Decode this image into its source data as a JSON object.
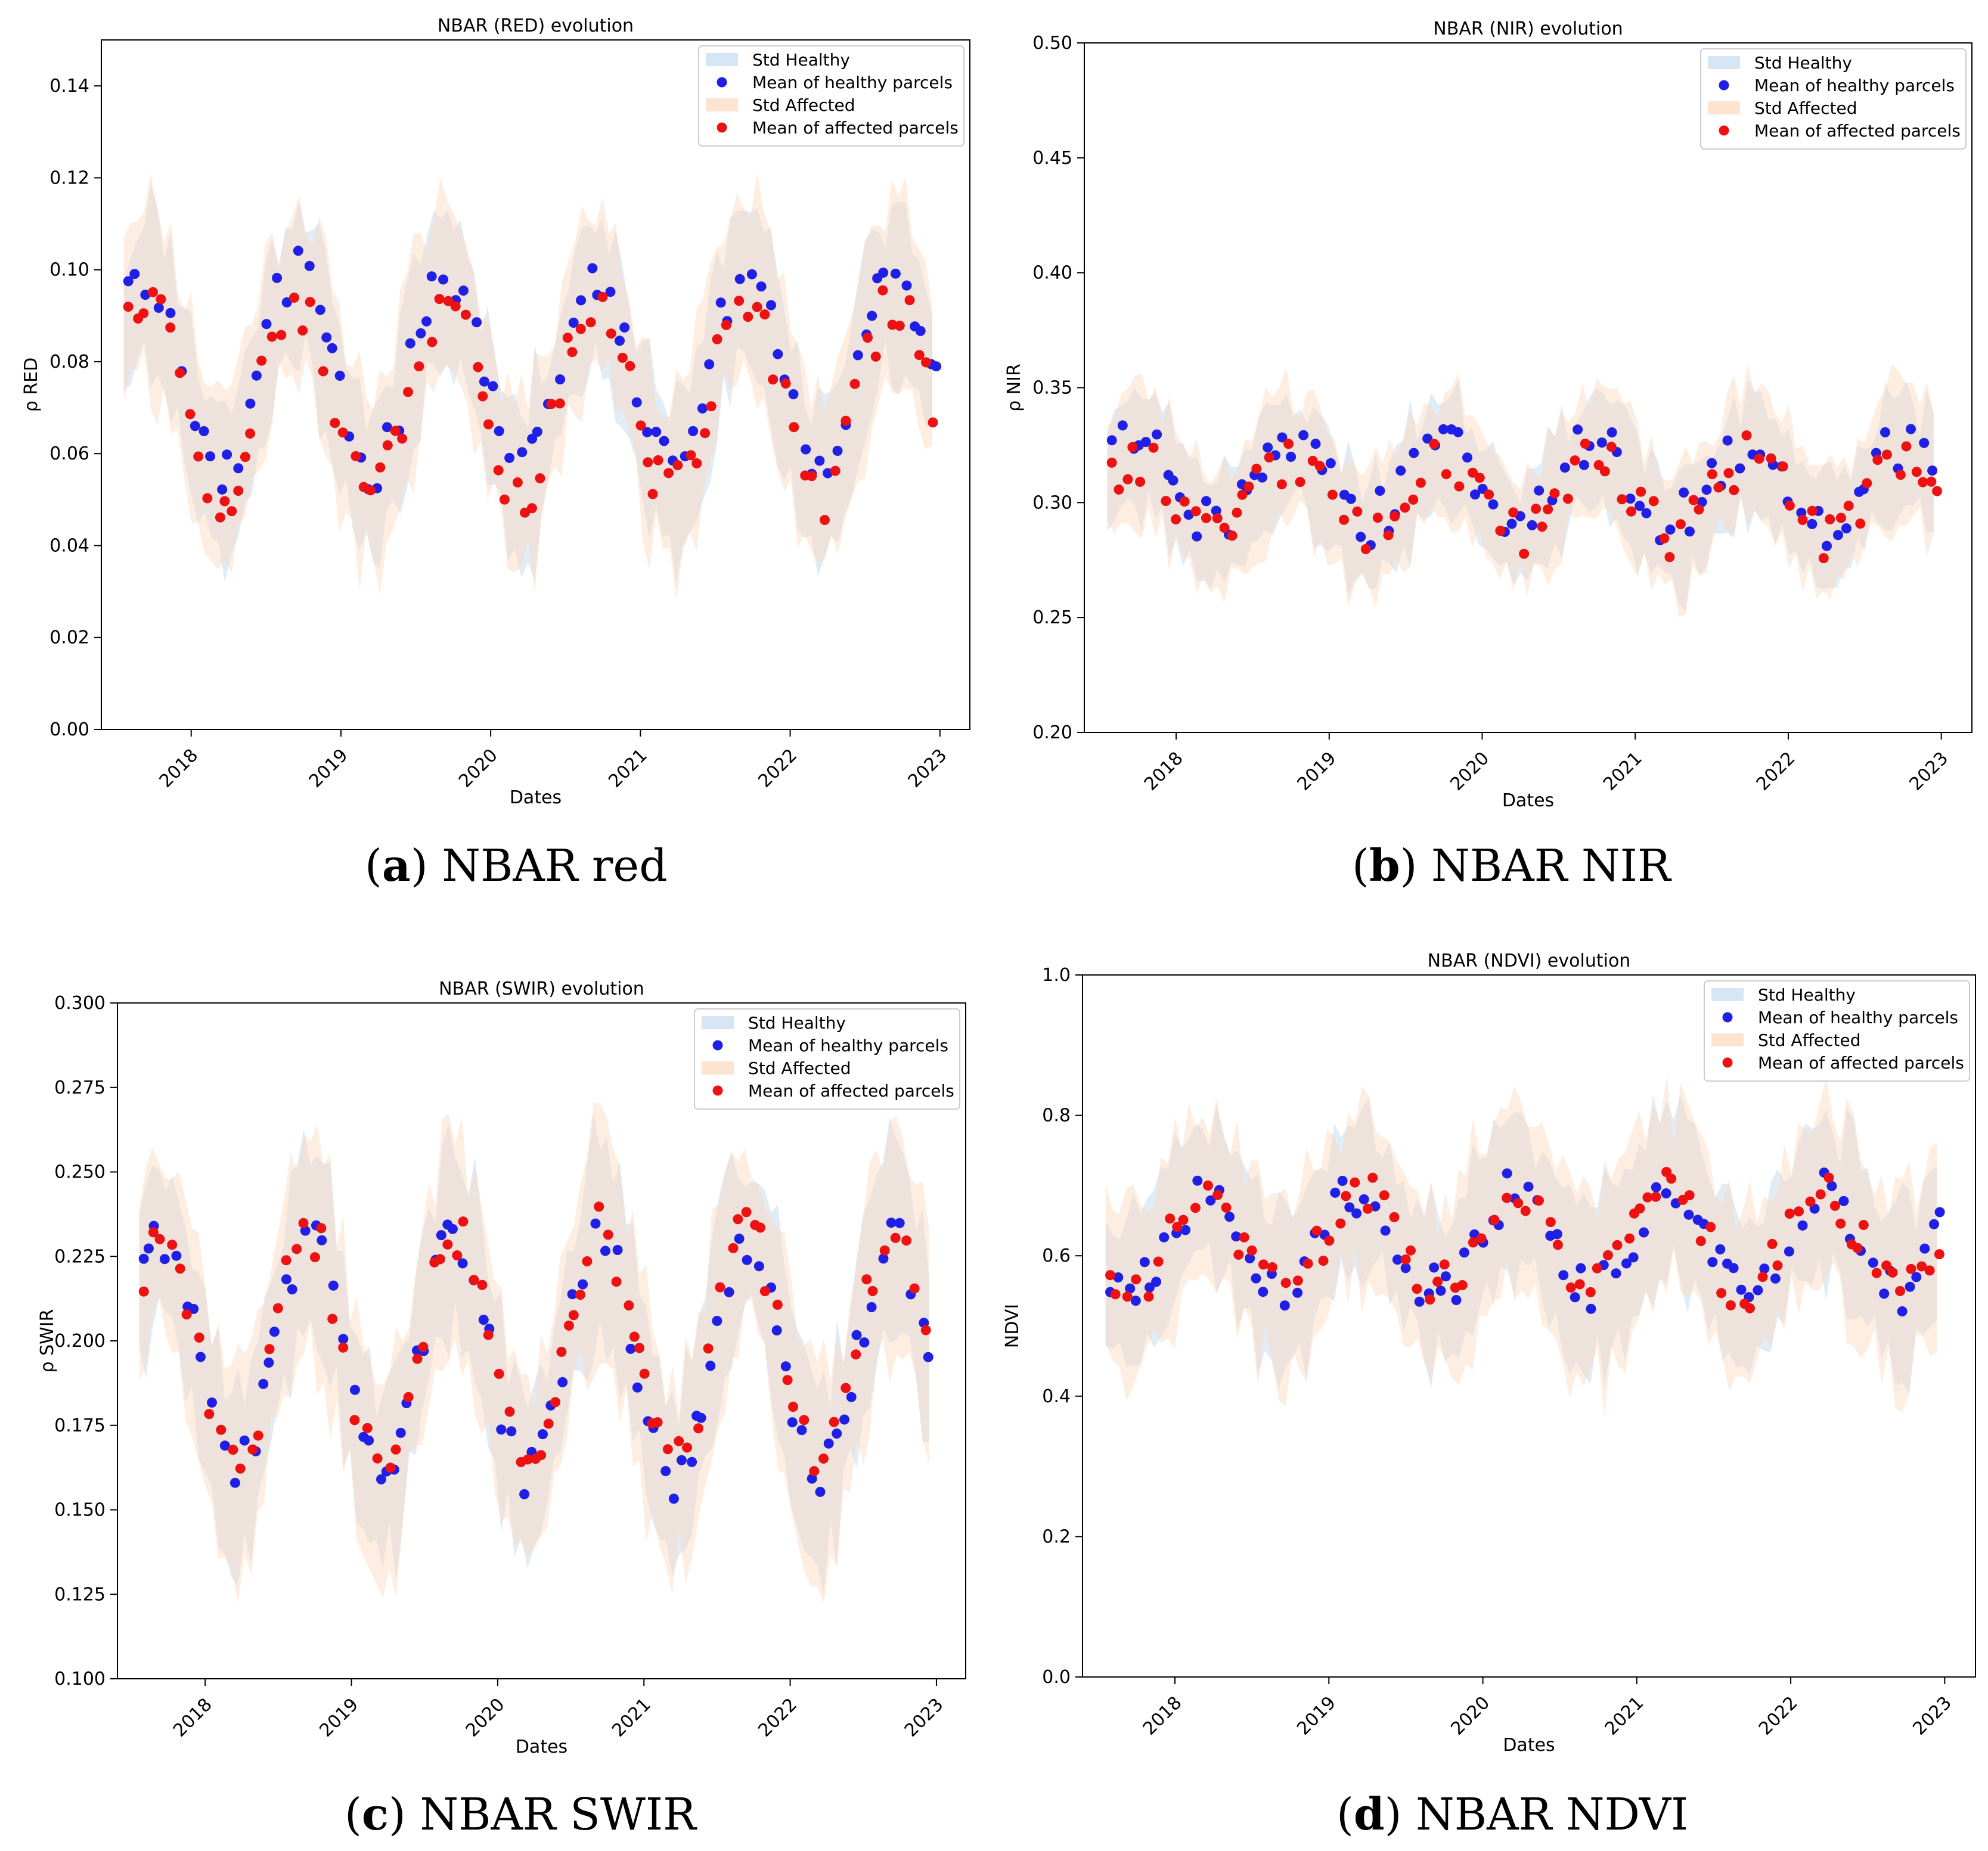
{
  "figure": {
    "colors": {
      "healthy": "#1f1fe6",
      "affected": "#ee1111",
      "std_healthy": "#c6dcef",
      "std_affected": "#fcd9bd"
    }
  },
  "chart_data": [
    {
      "id": "red",
      "type": "scatter",
      "title": "NBAR (RED) evolution",
      "xlabel": "Dates",
      "ylabel": "ρ RED",
      "xlim": [
        2017.4,
        2023.2
      ],
      "ylim": [
        0.0,
        0.15
      ],
      "yticks": [
        0.0,
        0.02,
        0.04,
        0.06,
        0.08,
        0.1,
        0.12,
        0.14
      ],
      "yticklabels": [
        "0.00",
        "0.02",
        "0.04",
        "0.06",
        "0.08",
        "0.10",
        "0.12",
        "0.14"
      ],
      "xticks": [
        2018,
        2019,
        2020,
        2021,
        2022,
        2023
      ],
      "xticklabels": [
        "2018",
        "2019",
        "2020",
        "2021",
        "2022",
        "2023"
      ],
      "legend": [
        "Std Healthy",
        "Mean of healthy parcels",
        "Std Affected",
        "Mean of affected parcels"
      ],
      "legend_position": "top-right",
      "caption_label": "a",
      "caption_text": "NBAR red",
      "base": 0.075,
      "amp": 0.021,
      "phase": 0.45,
      "noise": 0.006,
      "seed": 11,
      "std_half_width": 0.017,
      "series": [
        {
          "name": "Mean of healthy parcels",
          "color": "#1f1fe6",
          "offset": 0.003
        },
        {
          "name": "Mean of affected parcels",
          "color": "#ee1111",
          "offset": -0.003
        }
      ]
    },
    {
      "id": "nir",
      "type": "scatter",
      "title": "NBAR (NIR) evolution",
      "xlabel": "Dates",
      "ylabel": "ρ NIR",
      "xlim": [
        2017.4,
        2023.2
      ],
      "ylim": [
        0.2,
        0.5
      ],
      "yticks": [
        0.2,
        0.25,
        0.3,
        0.35,
        0.4,
        0.45,
        0.5
      ],
      "yticklabels": [
        "0.20",
        "0.25",
        "0.30",
        "0.35",
        "0.40",
        "0.45",
        "0.50"
      ],
      "xticks": [
        2018,
        2019,
        2020,
        2021,
        2022,
        2023
      ],
      "xticklabels": [
        "2018",
        "2019",
        "2020",
        "2021",
        "2022",
        "2023"
      ],
      "legend": [
        "Std Healthy",
        "Mean of healthy parcels",
        "Std Affected",
        "Mean of affected parcels"
      ],
      "legend_position": "top-right",
      "caption_label": "b",
      "caption_text": "NBAR NIR",
      "base": 0.305,
      "amp": 0.017,
      "phase": 0.5,
      "noise": 0.011,
      "seed": 23,
      "std_half_width": 0.024,
      "series": [
        {
          "name": "Mean of healthy parcels",
          "color": "#1f1fe6",
          "offset": 0.004
        },
        {
          "name": "Mean of affected parcels",
          "color": "#ee1111",
          "offset": -0.002
        }
      ]
    },
    {
      "id": "swir",
      "type": "scatter",
      "title": "NBAR (SWIR) evolution",
      "xlabel": "Dates",
      "ylabel": "ρ SWIR",
      "xlim": [
        2017.4,
        2023.2
      ],
      "ylim": [
        0.1,
        0.3
      ],
      "yticks": [
        0.1,
        0.125,
        0.15,
        0.175,
        0.2,
        0.225,
        0.25,
        0.275,
        0.3
      ],
      "yticklabels": [
        "0.100",
        "0.125",
        "0.150",
        "0.175",
        "0.200",
        "0.225",
        "0.250",
        "0.275",
        "0.300"
      ],
      "xticks": [
        2018,
        2019,
        2020,
        2021,
        2022,
        2023
      ],
      "xticklabels": [
        "2018",
        "2019",
        "2020",
        "2021",
        "2022",
        "2023"
      ],
      "legend": [
        "Std Healthy",
        "Mean of healthy parcels",
        "Std Affected",
        "Mean of affected parcels"
      ],
      "legend_position": "top-right",
      "caption_label": "c",
      "caption_text": "NBAR SWIR",
      "base": 0.195,
      "amp": 0.035,
      "phase": 0.45,
      "noise": 0.008,
      "seed": 37,
      "std_half_width": 0.026,
      "series": [
        {
          "name": "Mean of healthy parcels",
          "color": "#1f1fe6",
          "offset": 0.0
        },
        {
          "name": "Mean of affected parcels",
          "color": "#ee1111",
          "offset": 0.002
        }
      ]
    },
    {
      "id": "ndvi",
      "type": "scatter",
      "title": "NBAR (NDVI) evolution",
      "xlabel": "Dates",
      "ylabel": "NDVI",
      "xlim": [
        2017.4,
        2023.2
      ],
      "ylim": [
        0.0,
        1.0
      ],
      "yticks": [
        0.0,
        0.2,
        0.4,
        0.6,
        0.8,
        1.0
      ],
      "yticklabels": [
        "0.0",
        "0.2",
        "0.4",
        "0.6",
        "0.8",
        "1.0"
      ],
      "xticks": [
        2018,
        2019,
        2020,
        2021,
        2022,
        2023
      ],
      "xticklabels": [
        "2018",
        "2019",
        "2020",
        "2021",
        "2022",
        "2023"
      ],
      "legend": [
        "Std Healthy",
        "Mean of healthy parcels",
        "Std Affected",
        "Mean of affected parcels"
      ],
      "legend_position": "top-right",
      "caption_label": "d",
      "caption_text": "NBAR NDVI",
      "base": 0.62,
      "amp": 0.07,
      "phase": 0.95,
      "noise": 0.035,
      "seed": 53,
      "std_half_width": 0.11,
      "series": [
        {
          "name": "Mean of healthy parcels",
          "color": "#1f1fe6",
          "offset": 0.0
        },
        {
          "name": "Mean of affected parcels",
          "color": "#ee1111",
          "offset": 0.0
        }
      ]
    }
  ]
}
